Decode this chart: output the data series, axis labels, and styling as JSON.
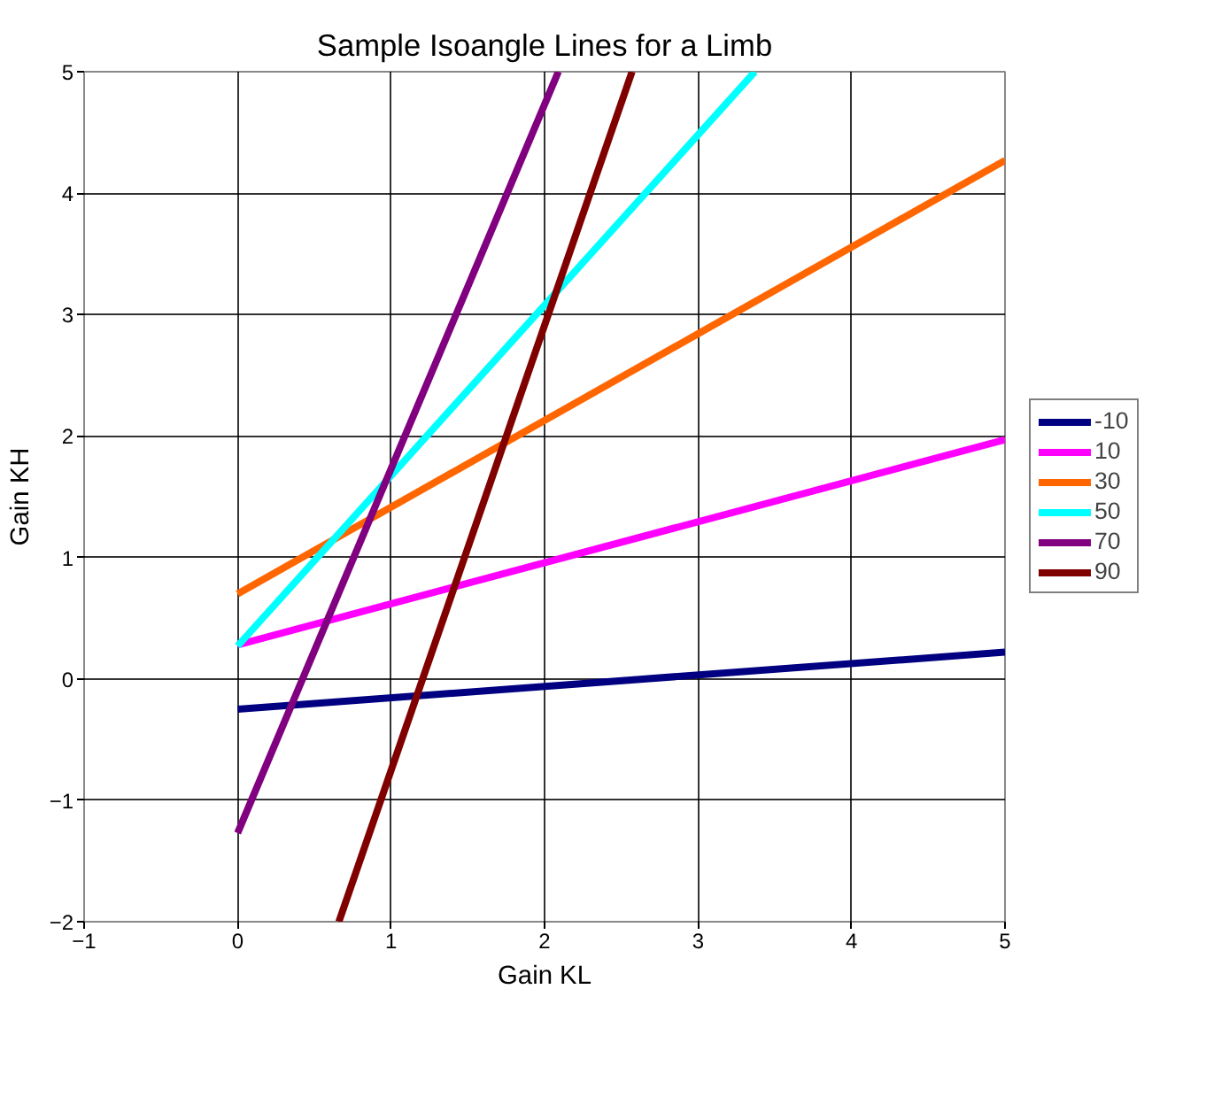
{
  "chart_data": {
    "type": "line",
    "title": "Sample Isoangle Lines for a Limb",
    "xlabel": "Gain KL",
    "ylabel": "Gain KH",
    "xlim": [
      -1,
      5
    ],
    "ylim": [
      -2,
      5
    ],
    "xticks": [
      -1,
      0,
      1,
      2,
      3,
      4,
      5
    ],
    "yticks": [
      -2,
      -1,
      0,
      1,
      2,
      3,
      4,
      5
    ],
    "grid": true,
    "legend": "right",
    "marker": "none",
    "line_style": "solid",
    "series": [
      {
        "name": "-10",
        "color": "#000080",
        "x": [
          0,
          5
        ],
        "values": [
          -0.25,
          0.22
        ]
      },
      {
        "name": "10",
        "color": "#ff00ff",
        "x": [
          0,
          5
        ],
        "values": [
          0.28,
          1.97
        ]
      },
      {
        "name": "30",
        "color": "#ff6600",
        "x": [
          0,
          5
        ],
        "values": [
          0.7,
          4.27
        ]
      },
      {
        "name": "50",
        "color": "#00ffff",
        "x": [
          0,
          3.37
        ],
        "values": [
          0.27,
          5
        ]
      },
      {
        "name": "70",
        "color": "#800080",
        "x": [
          0,
          2.09
        ],
        "values": [
          -1.27,
          5
        ]
      },
      {
        "name": "90",
        "color": "#800000",
        "x": [
          0.66,
          2.57
        ],
        "values": [
          -2,
          5
        ]
      }
    ]
  }
}
